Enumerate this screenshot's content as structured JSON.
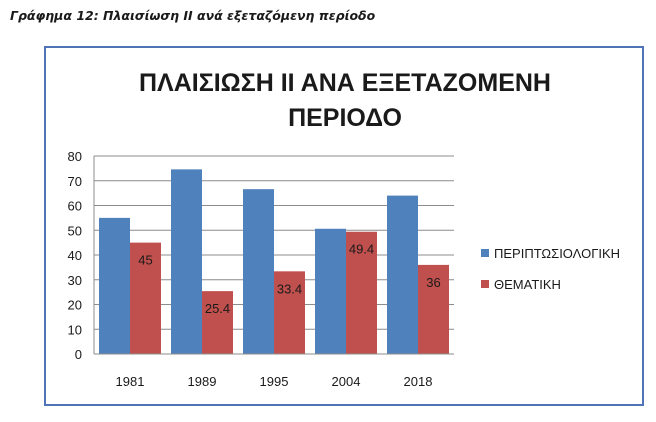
{
  "caption": "Γράφημα 12: Πλαισίωση ΙΙ ανά εξεταζόμενη περίοδο",
  "chart_data": {
    "type": "bar",
    "title_lines": [
      "ΠΛΑΙΣΙΩΣΗ ΙΙ ΑΝΑ ΕΞΕΤΑΖΟΜΕΝΗ",
      "ΠΕΡΙΟΔΟ"
    ],
    "categories": [
      "1981",
      "1989",
      "1995",
      "2004",
      "2018"
    ],
    "series": [
      {
        "name": "ΠΕΡΙΠΤΩΣΙΟΛΟΓΙΚΗ",
        "color": "#4f81bd",
        "values": [
          55,
          74.6,
          66.6,
          50.6,
          64
        ],
        "labels": [
          "",
          "",
          "",
          "",
          ""
        ]
      },
      {
        "name": "ΘΕΜΑΤΙΚΗ",
        "color": "#c0504d",
        "values": [
          45,
          25.4,
          33.4,
          49.4,
          36
        ],
        "labels": [
          "45",
          "25.4",
          "33.4",
          "49.4",
          "36"
        ]
      }
    ],
    "ylim": [
      0,
      80
    ],
    "yticks": [
      0,
      10,
      20,
      30,
      40,
      50,
      60,
      70,
      80
    ],
    "grid": true,
    "legend": "right",
    "xlabel": "",
    "ylabel": ""
  }
}
